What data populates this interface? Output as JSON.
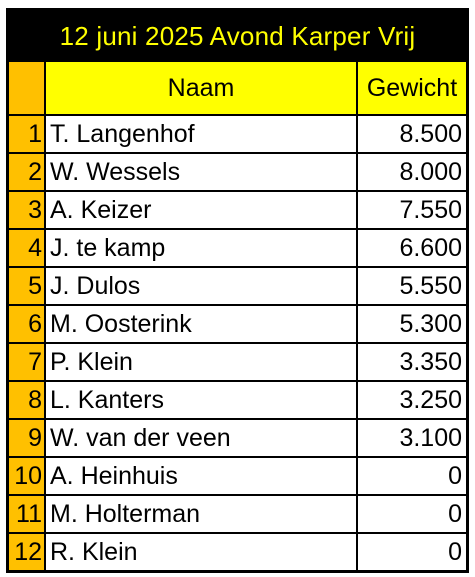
{
  "table": {
    "title": "12 juni 2025 Avond Karper Vrij",
    "headers": {
      "rank": "",
      "name": "Naam",
      "weight": "Gewicht"
    },
    "rows": [
      {
        "rank": "1",
        "name": "T. Langenhof",
        "weight": "8.500"
      },
      {
        "rank": "2",
        "name": "W. Wessels",
        "weight": "8.000"
      },
      {
        "rank": "3",
        "name": "A. Keizer",
        "weight": "7.550"
      },
      {
        "rank": "4",
        "name": "J. te kamp",
        "weight": "6.600"
      },
      {
        "rank": "5",
        "name": "J. Dulos",
        "weight": "5.550"
      },
      {
        "rank": "6",
        "name": "M. Oosterink",
        "weight": "5.300"
      },
      {
        "rank": "7",
        "name": "P. Klein",
        "weight": "3.350"
      },
      {
        "rank": "8",
        "name": "L. Kanters",
        "weight": "3.250"
      },
      {
        "rank": "9",
        "name": "W. van der veen",
        "weight": "3.100"
      },
      {
        "rank": "10",
        "name": "A. Heinhuis",
        "weight": "0"
      },
      {
        "rank": "11",
        "name": "M. Holterman",
        "weight": "0"
      },
      {
        "rank": "12",
        "name": "R. Klein",
        "weight": "0"
      }
    ]
  },
  "colors": {
    "title_background": "#000000",
    "title_text": "#ffff00",
    "header_background": "#ffff00",
    "rank_background": "#ffc000",
    "border": "#000000"
  }
}
